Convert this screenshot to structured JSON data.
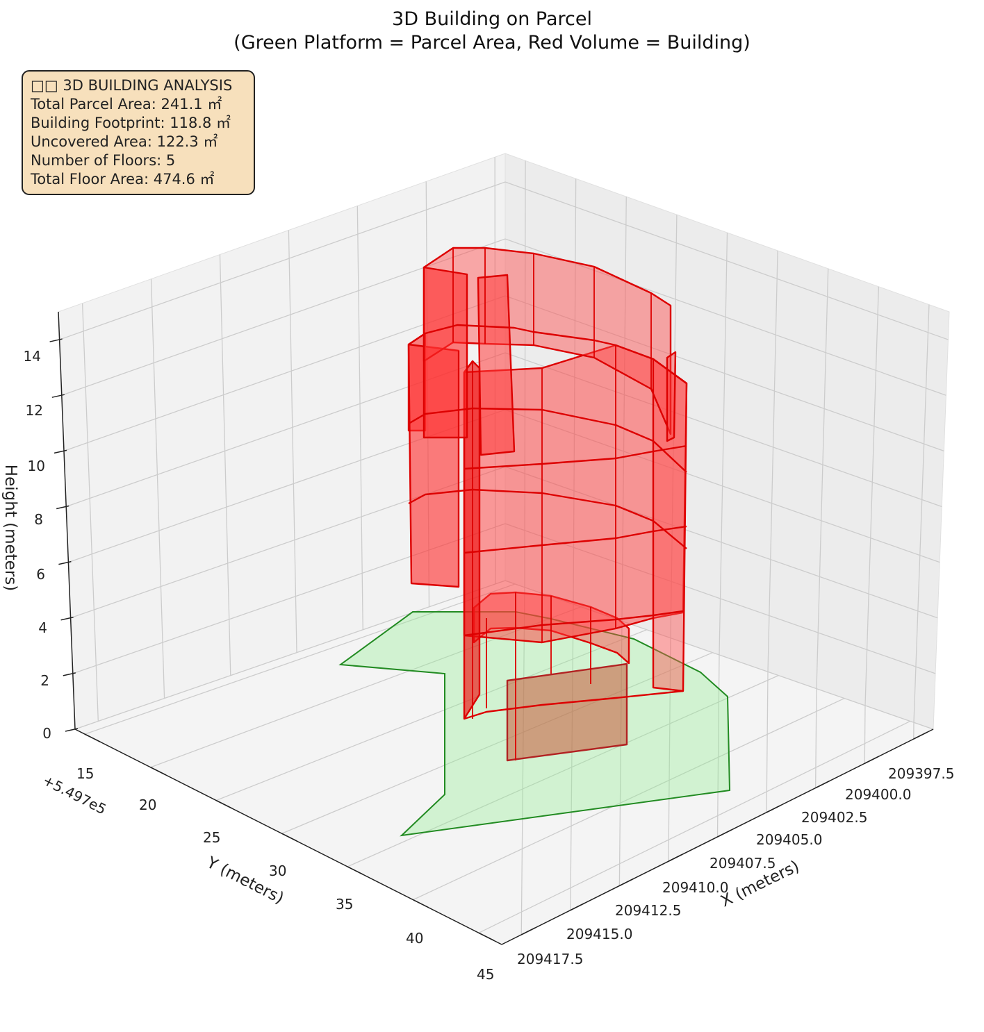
{
  "chart_data": {
    "type": "3d-polygons",
    "title": "3D Building on Parcel",
    "subtitle": "(Green Platform = Parcel Area, Red Volume = Building)",
    "xlabel": "X (meters)",
    "ylabel": "Y (meters)",
    "zlabel": "Height (meters)",
    "y_offset_label": "+5.497e5",
    "x_ticks": [
      "209397.5",
      "209400.0",
      "209402.5",
      "209405.0",
      "209407.5",
      "209410.0",
      "209412.5",
      "209415.0",
      "209417.5"
    ],
    "y_ticks": [
      "15",
      "20",
      "25",
      "30",
      "35",
      "40",
      "45"
    ],
    "z_ticks": [
      "0",
      "2",
      "4",
      "6",
      "8",
      "10",
      "12",
      "14"
    ],
    "zlim": [
      0,
      15
    ],
    "grid": true,
    "series": [
      {
        "name": "Parcel Area",
        "color": "#90ee90"
      },
      {
        "name": "Building",
        "color": "#ff0000"
      }
    ]
  },
  "info_box": {
    "heading": "□□ 3D BUILDING ANALYSIS",
    "lines": [
      "Total Parcel Area: 241.1 ㎡",
      "Building Footprint: 118.8 ㎡",
      "Uncovered Area: 122.3 ㎡",
      "Number of Floors: 5",
      "Total Floor Area: 474.6 ㎡"
    ]
  },
  "colors": {
    "parcel_fill": "#90ee90",
    "parcel_edge": "#228b22",
    "building_fill": "#ff0000",
    "building_edge": "#cc0000",
    "info_bg": "#f7e0bc"
  }
}
